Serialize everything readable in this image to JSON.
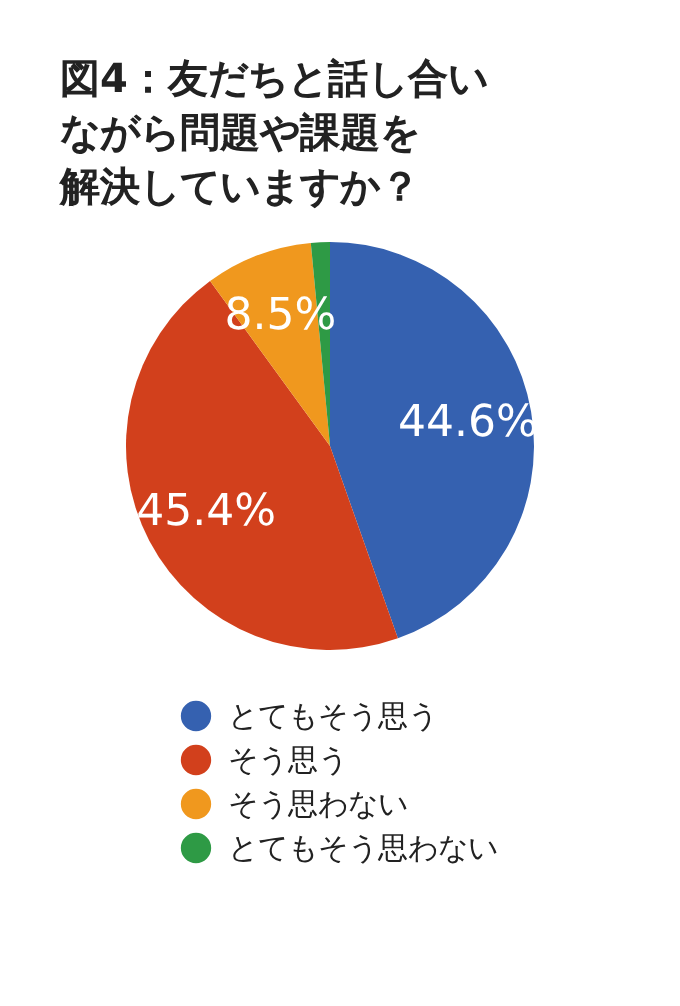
{
  "chart_data": {
    "type": "pie",
    "title": "図4：友だちと話し合いながら問題や課題を解決していますか？",
    "categories": [
      "とてもそう思う",
      "そう思う",
      "そう思わない",
      "とてもそう思わない"
    ],
    "values": [
      44.6,
      45.4,
      8.5,
      1.5
    ],
    "colors": [
      "#3561b0",
      "#d2401c",
      "#f0981e",
      "#2e9a45"
    ],
    "value_labels": [
      "44.6%",
      "45.4%",
      "8.5%",
      null
    ],
    "legend": "bottom"
  }
}
